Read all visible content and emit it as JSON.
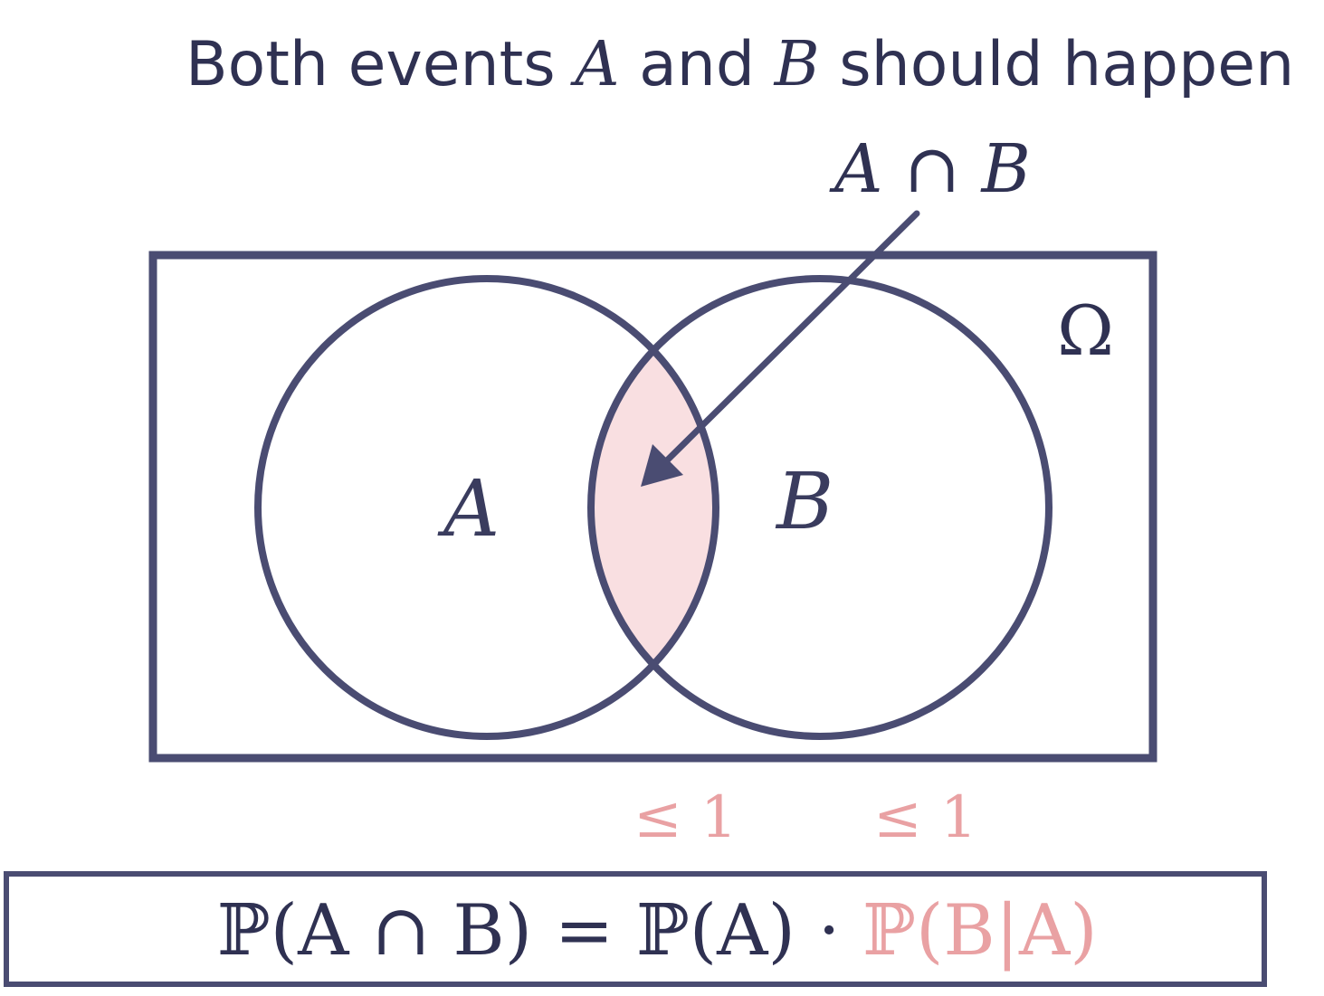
{
  "title": {
    "prefix": "Both events ",
    "a": "A",
    "middle": " and ",
    "b": "B",
    "suffix": " should happen"
  },
  "intersection_label": "A ∩ B",
  "universe_label": "Ω",
  "set_a_label": "A",
  "set_b_label": "B",
  "bound_a": "≤ 1",
  "bound_b": "≤ 1",
  "formula": {
    "lhs": "ℙ(A ∩ B)",
    "eq": " = ",
    "pa": "ℙ(A)",
    "dot": " · ",
    "pba": "ℙ(B|A)"
  },
  "colors": {
    "stroke": "#4a4c72",
    "text": "#2f3152",
    "intersection_fill": "#f9dfe1",
    "accent": "#e9a1a3"
  }
}
